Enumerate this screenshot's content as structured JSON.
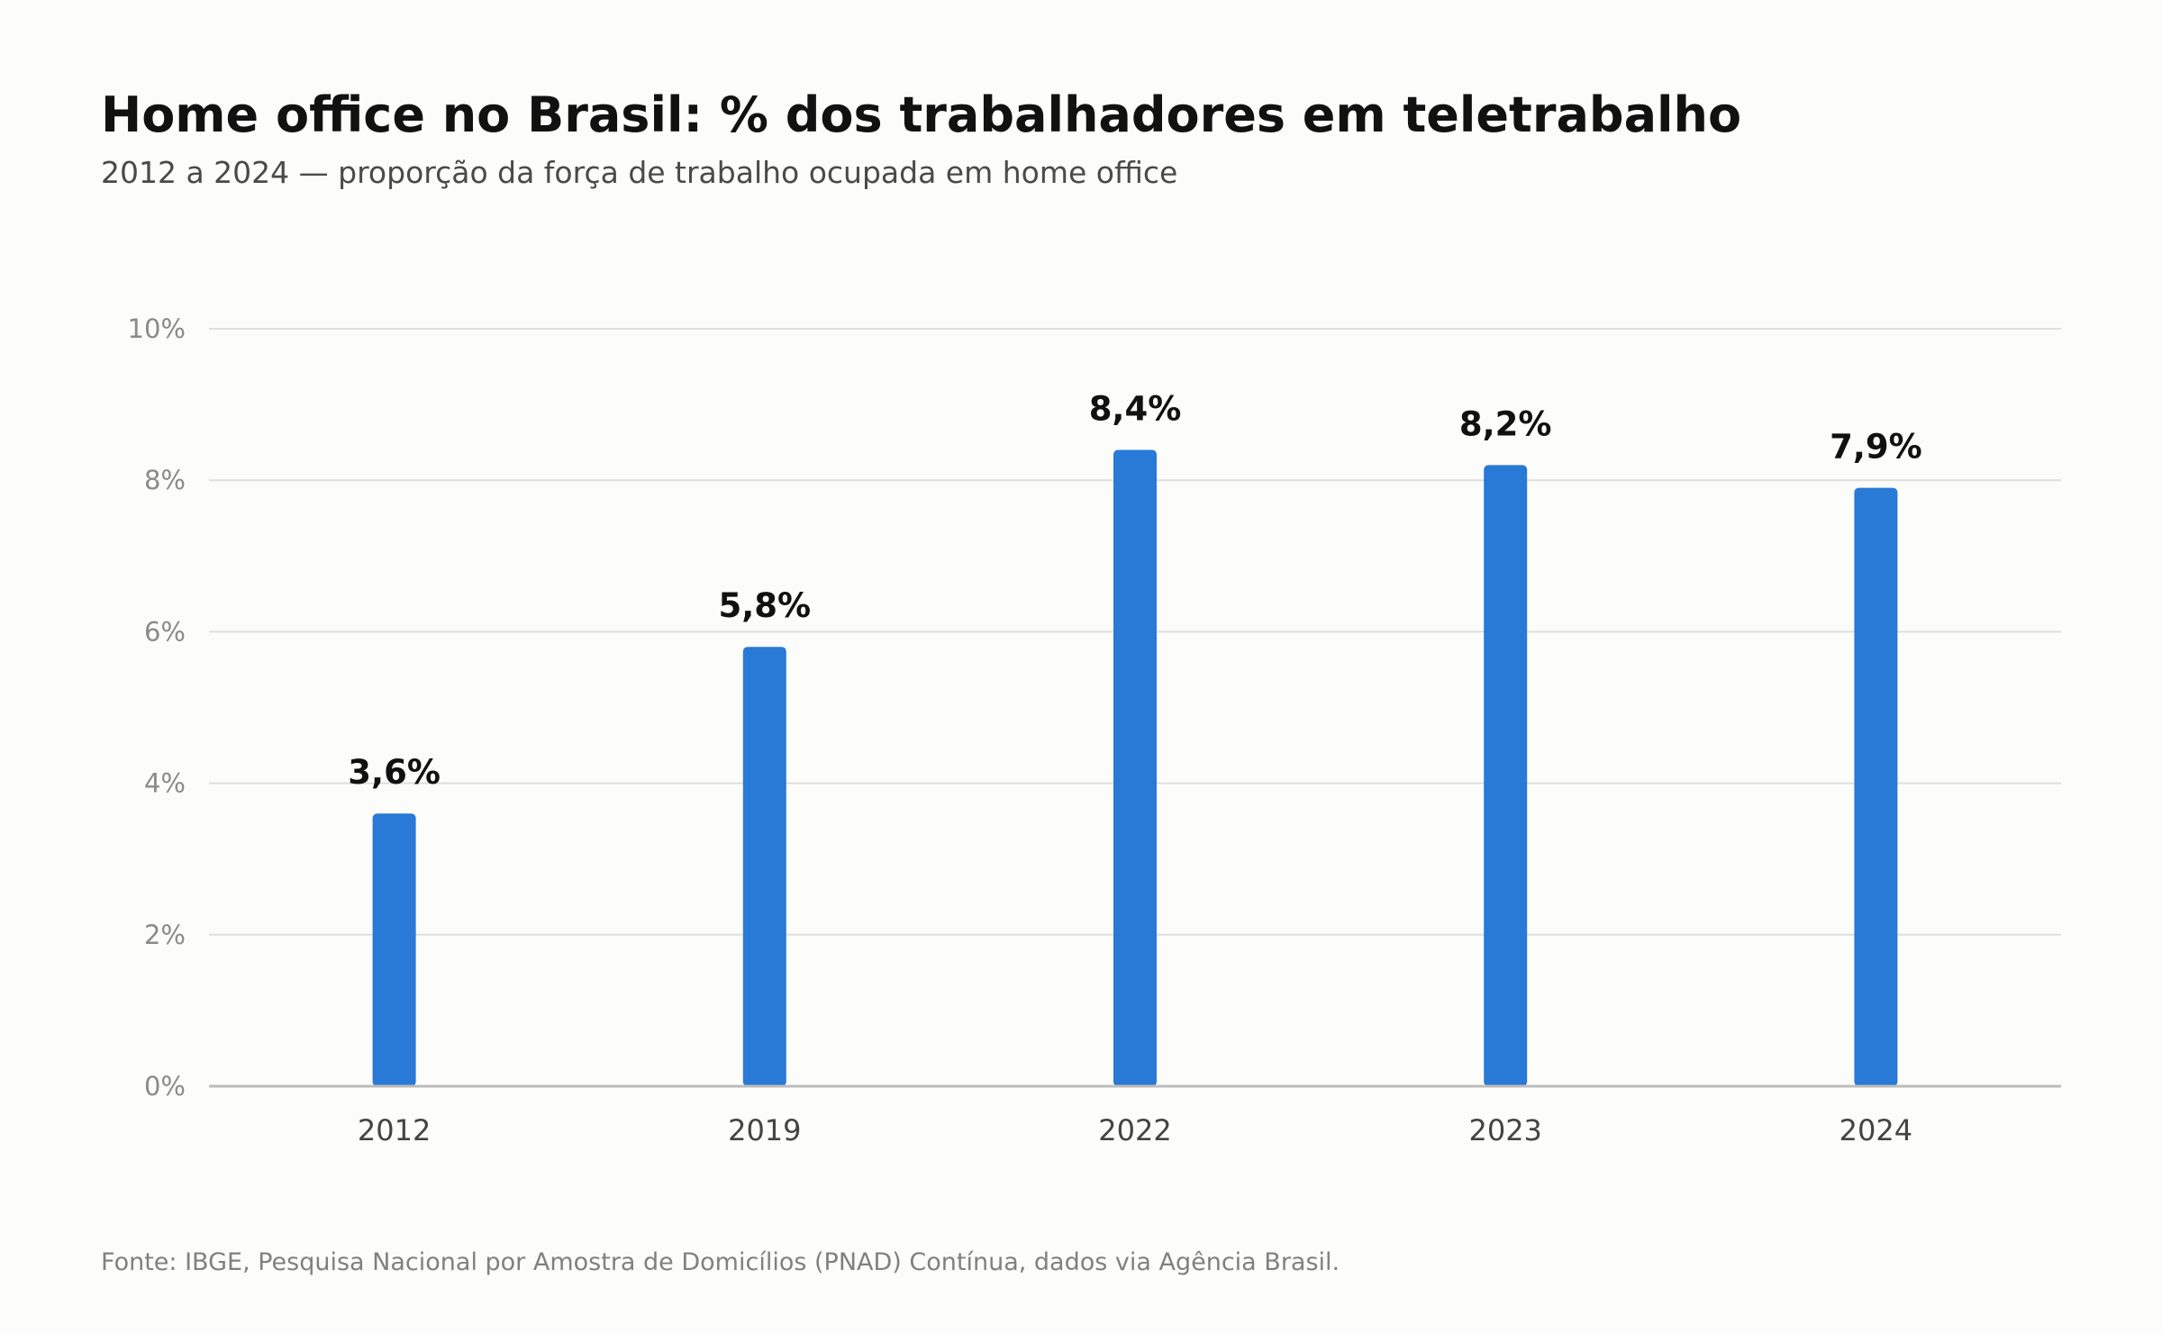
{
  "header": {
    "title": "Home office no Brasil: % dos trabalhadores em teletrabalho",
    "subtitle": "2012 a 2024 — proporção da força de trabalho ocupada em home office"
  },
  "footer": {
    "source": "Fonte: IBGE, Pesquisa Nacional por Amostra de Domicílios (PNAD) Contínua, dados via Agência Brasil."
  },
  "chart_data": {
    "type": "bar",
    "title": "Home office no Brasil: % dos trabalhadores em teletrabalho",
    "subtitle": "2012 a 2024 — proporção da força de trabalho ocupada em home office",
    "categories": [
      "2012",
      "2019",
      "2022",
      "2023",
      "2024"
    ],
    "values": [
      3.6,
      5.8,
      8.4,
      8.2,
      7.9
    ],
    "data_labels": [
      "3,6%",
      "5,8%",
      "8,4%",
      "8,2%",
      "7,9%"
    ],
    "xlabel": "",
    "ylabel": "",
    "ylim": [
      0,
      10
    ],
    "yticks": [
      0,
      2,
      4,
      6,
      8,
      10
    ],
    "ytick_labels": [
      "0%",
      "2%",
      "4%",
      "6%",
      "8%",
      "10%"
    ],
    "grid": "horizontal",
    "legend": "none",
    "colors": {
      "bar": "#2979d6",
      "grid": "#dedede",
      "axis": "#bdbdbd"
    }
  }
}
